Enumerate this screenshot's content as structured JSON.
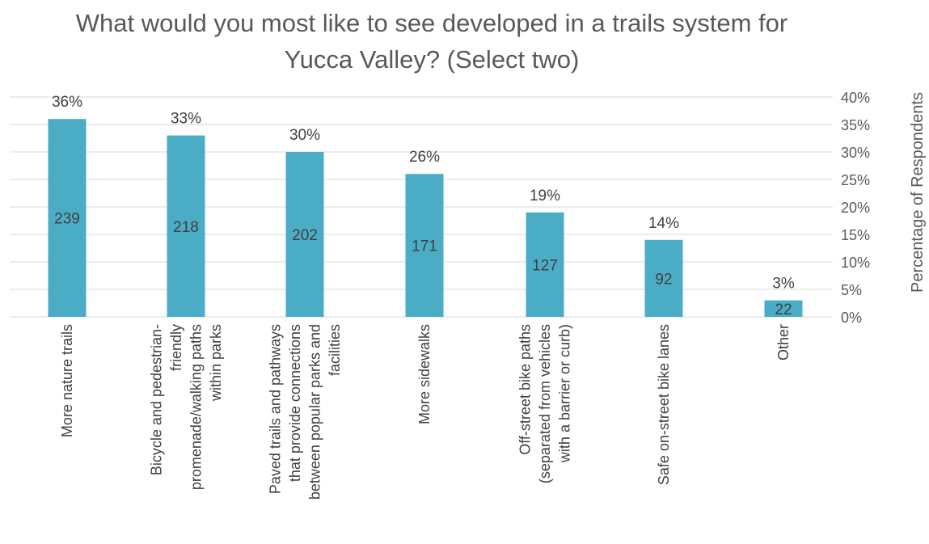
{
  "chart_data": {
    "type": "bar",
    "title_lines": [
      "What would you most like to see developed in a trails system for",
      "Yucca Valley? (Select two)"
    ],
    "categories": [
      [
        "More nature trails"
      ],
      [
        "Bicycle and pedestrian-",
        "friendly",
        "promenade/walking paths",
        "within parks"
      ],
      [
        "Paved trails and pathways",
        "that provide connections",
        "between popular parks and",
        "facilities"
      ],
      [
        "More sidewalks"
      ],
      [
        "Off-street bike paths",
        "(separated from vehicles",
        "with a barrier or curb)"
      ],
      [
        "Safe on-street bike lanes"
      ],
      [
        "Other"
      ]
    ],
    "values": [
      36,
      33,
      30,
      26,
      19,
      14,
      3
    ],
    "value_labels": [
      "36%",
      "33%",
      "30%",
      "26%",
      "19%",
      "14%",
      "3%"
    ],
    "counts": [
      "239",
      "218",
      "202",
      "171",
      "127",
      "92",
      "22"
    ],
    "ylabel": "Percentage of Respondents",
    "ylim": [
      0,
      40
    ],
    "yticks": [
      0,
      5,
      10,
      15,
      20,
      25,
      30,
      35,
      40
    ],
    "ytick_labels": [
      "0%",
      "5%",
      "10%",
      "15%",
      "20%",
      "25%",
      "30%",
      "35%",
      "40%"
    ],
    "y_axis_side": "right",
    "grid": true,
    "bar_color": "#4bacc6"
  }
}
